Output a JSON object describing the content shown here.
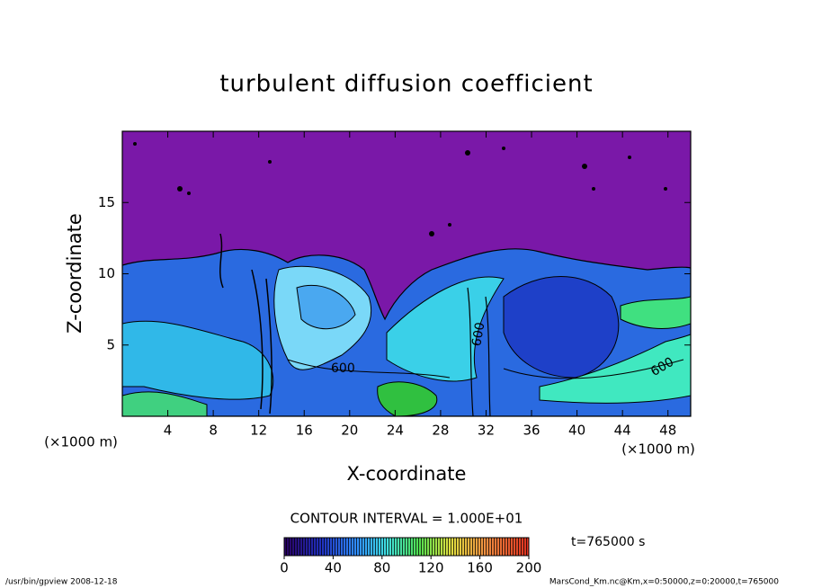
{
  "chart_data": {
    "type": "contour",
    "title": "turbulent diffusion coefficient",
    "x_label": "X-coordinate",
    "y_label": "Z-coordinate",
    "x_unit": "(×1000 m)",
    "y_unit": "(×1000 m)",
    "xlim": [
      0,
      50
    ],
    "ylim": [
      0,
      20
    ],
    "xticks": [
      4,
      8,
      12,
      16,
      20,
      24,
      28,
      32,
      36,
      40,
      44,
      48
    ],
    "yticks": [
      5,
      10,
      15
    ],
    "contour_labels": [
      "600",
      "600",
      "600"
    ],
    "contour_interval": "CONTOUR INTERVAL = 1.000E+01",
    "time_label": "t=765000 s",
    "colorbar": {
      "lim": [
        0,
        200
      ],
      "ticks": [
        0,
        40,
        80,
        120,
        160,
        200
      ]
    },
    "footer_left": "/usr/bin/gpview   2008-12-18",
    "footer_right": "MarsCond_Km.nc@Km,x=0:50000,z=0:20000,t=765000"
  }
}
